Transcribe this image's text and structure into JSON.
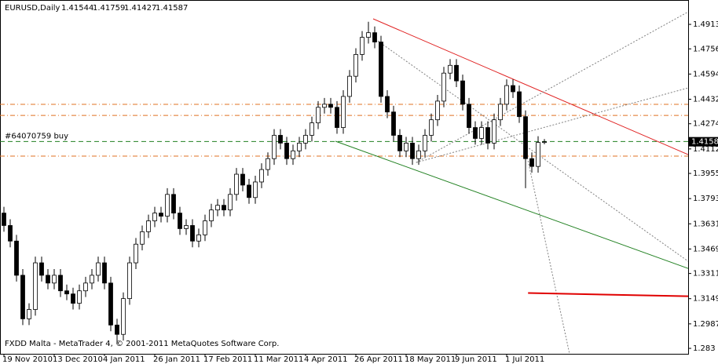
{
  "chart_data": {
    "type": "candlestick",
    "symbol": "EURUSD,Daily",
    "footer": "FXDD Malta - MetaTrader 4, © 2001-2011 MetaQuotes Software Corp.",
    "categories": [
      "19 Nov 2010",
      null,
      null,
      null,
      null,
      null,
      null,
      null,
      "13 Dec 2010",
      null,
      null,
      null,
      null,
      null,
      null,
      null,
      "4 Jan 2011",
      null,
      null,
      null,
      null,
      null,
      null,
      null,
      "26 Jan 2011",
      null,
      null,
      null,
      null,
      null,
      null,
      null,
      "17 Feb 2011",
      null,
      null,
      null,
      null,
      null,
      null,
      null,
      "11 Mar 2011",
      null,
      null,
      null,
      null,
      null,
      null,
      null,
      "4 Apr 2011",
      null,
      null,
      null,
      null,
      null,
      null,
      null,
      "26 Apr 2011",
      null,
      null,
      null,
      null,
      null,
      null,
      null,
      "18 May 2011",
      null,
      null,
      null,
      null,
      null,
      null,
      null,
      "9 Jun 2011",
      null,
      null,
      null,
      null,
      null,
      null,
      null,
      "1 Jul 2011",
      null,
      null,
      null,
      null,
      null,
      null
    ],
    "open": [
      1.37,
      1.362,
      1.352,
      1.33,
      1.302,
      1.308,
      1.338,
      1.33,
      1.325,
      1.33,
      1.32,
      1.318,
      1.312,
      1.32,
      1.325,
      1.33,
      1.338,
      1.325,
      1.298,
      1.292,
      1.315,
      1.338,
      1.35,
      1.358,
      1.365,
      1.37,
      1.368,
      1.382,
      1.37,
      1.36,
      1.362,
      1.352,
      1.356,
      1.365,
      1.372,
      1.375,
      1.372,
      1.382,
      1.395,
      1.388,
      1.38,
      1.39,
      1.398,
      1.405,
      1.42,
      1.415,
      1.405,
      1.41,
      1.415,
      1.42,
      1.428,
      1.438,
      1.44,
      1.438,
      1.425,
      1.445,
      1.458,
      1.472,
      1.483,
      1.486,
      1.48,
      1.445,
      1.435,
      1.42,
      1.41,
      1.415,
      1.405,
      1.41,
      1.42,
      1.43,
      1.442,
      1.46,
      1.465,
      1.455,
      1.44,
      1.425,
      1.418,
      1.425,
      1.415,
      1.43,
      1.44,
      1.452,
      1.448,
      1.432,
      1.405,
      1.4,
      1.41544
    ],
    "high": [
      1.374,
      1.366,
      1.356,
      1.334,
      1.312,
      1.342,
      1.342,
      1.334,
      1.334,
      1.334,
      1.324,
      1.322,
      1.324,
      1.329,
      1.334,
      1.342,
      1.342,
      1.329,
      1.302,
      1.319,
      1.342,
      1.354,
      1.362,
      1.369,
      1.374,
      1.374,
      1.386,
      1.386,
      1.374,
      1.366,
      1.366,
      1.36,
      1.369,
      1.376,
      1.379,
      1.379,
      1.386,
      1.399,
      1.399,
      1.392,
      1.394,
      1.402,
      1.409,
      1.424,
      1.424,
      1.419,
      1.414,
      1.419,
      1.424,
      1.432,
      1.442,
      1.444,
      1.444,
      1.442,
      1.449,
      1.462,
      1.476,
      1.487,
      1.493,
      1.49,
      1.484,
      1.449,
      1.439,
      1.424,
      1.419,
      1.419,
      1.414,
      1.424,
      1.434,
      1.446,
      1.464,
      1.469,
      1.469,
      1.459,
      1.444,
      1.429,
      1.429,
      1.429,
      1.434,
      1.444,
      1.456,
      1.456,
      1.452,
      1.436,
      1.409,
      1.4194,
      1.41759
    ],
    "low": [
      1.358,
      1.348,
      1.326,
      1.298,
      1.298,
      1.304,
      1.326,
      1.321,
      1.321,
      1.316,
      1.314,
      1.308,
      1.308,
      1.316,
      1.321,
      1.326,
      1.321,
      1.294,
      1.286,
      1.288,
      1.311,
      1.334,
      1.346,
      1.354,
      1.361,
      1.364,
      1.364,
      1.366,
      1.356,
      1.356,
      1.348,
      1.348,
      1.352,
      1.361,
      1.368,
      1.368,
      1.368,
      1.378,
      1.384,
      1.376,
      1.376,
      1.386,
      1.394,
      1.401,
      1.411,
      1.401,
      1.401,
      1.406,
      1.411,
      1.416,
      1.424,
      1.434,
      1.434,
      1.421,
      1.421,
      1.441,
      1.454,
      1.468,
      1.479,
      1.476,
      1.441,
      1.431,
      1.416,
      1.406,
      1.406,
      1.401,
      1.401,
      1.406,
      1.416,
      1.426,
      1.438,
      1.456,
      1.451,
      1.436,
      1.421,
      1.414,
      1.414,
      1.411,
      1.411,
      1.426,
      1.436,
      1.444,
      1.428,
      1.386,
      1.396,
      1.396,
      1.41427
    ],
    "close": [
      1.362,
      1.352,
      1.33,
      1.302,
      1.308,
      1.338,
      1.33,
      1.325,
      1.33,
      1.32,
      1.318,
      1.312,
      1.32,
      1.325,
      1.33,
      1.338,
      1.325,
      1.298,
      1.292,
      1.315,
      1.338,
      1.35,
      1.358,
      1.365,
      1.37,
      1.368,
      1.382,
      1.37,
      1.36,
      1.362,
      1.352,
      1.356,
      1.365,
      1.372,
      1.375,
      1.372,
      1.382,
      1.395,
      1.388,
      1.38,
      1.39,
      1.398,
      1.405,
      1.42,
      1.415,
      1.405,
      1.41,
      1.415,
      1.42,
      1.428,
      1.438,
      1.44,
      1.438,
      1.425,
      1.445,
      1.458,
      1.472,
      1.483,
      1.486,
      1.48,
      1.445,
      1.435,
      1.42,
      1.41,
      1.415,
      1.405,
      1.41,
      1.42,
      1.43,
      1.442,
      1.46,
      1.465,
      1.455,
      1.44,
      1.425,
      1.418,
      1.425,
      1.415,
      1.43,
      1.44,
      1.452,
      1.448,
      1.432,
      1.405,
      1.4,
      1.4154,
      1.41587
    ],
    "ylim": [
      1.2795,
      1.505
    ],
    "yticks": [
      1.49135,
      1.4756,
      1.4594,
      1.4432,
      1.42745,
      1.41125,
      1.3955,
      1.3793,
      1.3631,
      1.3469,
      1.33115,
      1.31495,
      1.29875,
      1.283
    ],
    "hlines": [
      {
        "value": 1.4399,
        "color": "#e07020"
      },
      {
        "value": 1.4328,
        "color": "#e07020"
      },
      {
        "value": 1.4066,
        "color": "#e07020"
      }
    ],
    "order": {
      "label": "#64070759 buy",
      "value": 1.416,
      "color": "#208020"
    },
    "trendlines": [
      {
        "from": [
          58.75,
          1.4949
        ],
        "to": [
          108.9,
          1.4076
        ],
        "color": "#e02020"
      },
      {
        "from": [
          52.75,
          1.4162
        ],
        "to": [
          108.9,
          1.3344
        ],
        "color": "#208020"
      },
      {
        "from": [
          59.1,
          1.4818
        ],
        "to": [
          108.9,
          1.339
        ],
        "color": "#808080"
      },
      {
        "from": [
          65.6,
          1.4025
        ],
        "to": [
          108.9,
          1.4505
        ],
        "color": "#808080"
      },
      {
        "from": [
          65.6,
          1.4025
        ],
        "to": [
          108.9,
          1.4994
        ],
        "color": "#808080"
      },
      {
        "from": [
          83.4,
          1.4036
        ],
        "to": [
          90,
          1.2795
        ],
        "color": "#808080"
      },
      {
        "from": [
          83.4,
          1.3186
        ],
        "to": [
          108.9,
          1.3165
        ],
        "color": "#e00000"
      }
    ]
  }
}
